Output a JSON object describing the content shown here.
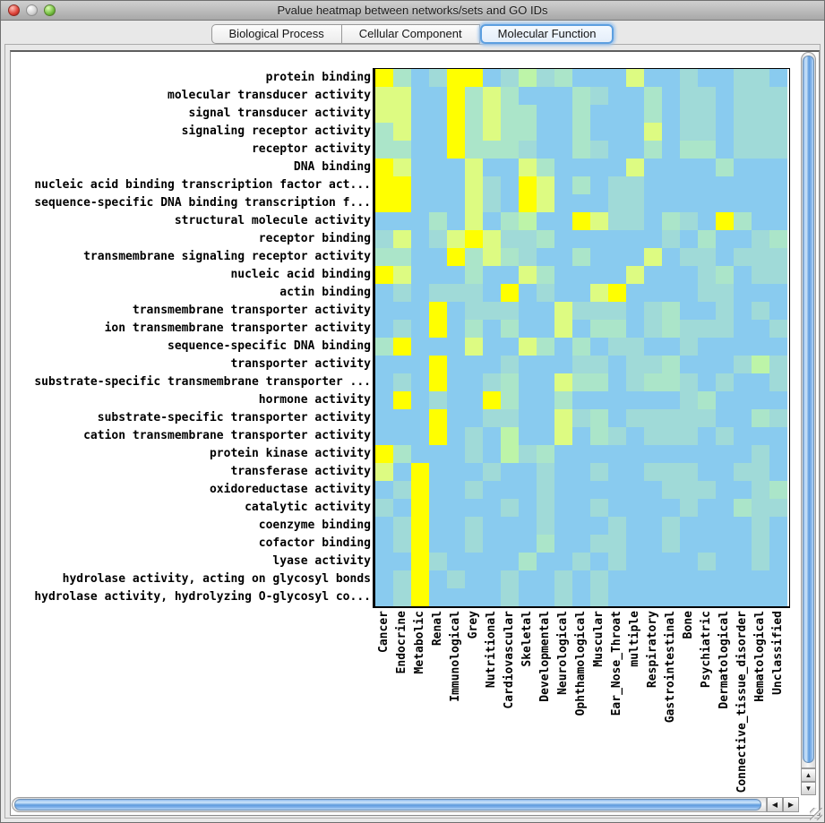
{
  "window": {
    "title": "Pvalue heatmap between networks/sets and GO IDs"
  },
  "tabs": [
    {
      "label": "Biological Process",
      "selected": false
    },
    {
      "label": "Cellular Component",
      "selected": false
    },
    {
      "label": "Molecular Function",
      "selected": true
    }
  ],
  "icons": {
    "scroll_up": "▲",
    "scroll_down": "▼",
    "scroll_left": "◀",
    "scroll_right": "▶"
  },
  "chart_data": {
    "type": "heatmap",
    "rows": [
      "protein binding",
      "molecular transducer activity",
      "signal transducer activity",
      "signaling receptor activity",
      "receptor activity",
      "DNA binding",
      "nucleic acid binding transcription factor act...",
      "sequence-specific DNA binding transcription f...",
      "structural molecule activity",
      "receptor binding",
      "transmembrane signaling receptor activity",
      "nucleic acid binding",
      "actin binding",
      "transmembrane transporter activity",
      "ion transmembrane transporter activity",
      "sequence-specific DNA binding",
      "transporter activity",
      "substrate-specific transmembrane transporter ...",
      "hormone activity",
      "substrate-specific transporter activity",
      "cation transmembrane transporter activity",
      "protein kinase activity",
      "transferase activity",
      "oxidoreductase activity",
      "catalytic activity",
      "coenzyme binding",
      "cofactor binding",
      "lyase activity",
      "hydrolase activity, acting on glycosyl bonds",
      "hydrolase activity, hydrolyzing O-glycosyl co..."
    ],
    "columns": [
      "Cancer",
      "Endocrine",
      "Metabolic",
      "Renal",
      "Immunological",
      "Grey",
      "Nutritional",
      "Cardiovascular",
      "Skeletal",
      "Developmental",
      "Neurological",
      "Ophthamological",
      "Muscular",
      "Ear_Nose_Throat",
      "multiple",
      "Respiratory",
      "Gastrointestinal",
      "Bone",
      "Psychiatric",
      "Dermatological",
      "Connective_tissue_disorder",
      "Hematological",
      "Unclassified"
    ],
    "palette": {
      "b": "#89CBEF",
      "t": "#A0DAD8",
      "m": "#ABE5C9",
      "g": "#BDF4A8",
      "p": "#DDFB82",
      "y": "#FFFF00"
    },
    "palette_legend": {
      "b": "low significance (light blue)",
      "t": "pale blue-green",
      "m": "mint green",
      "g": "light green",
      "p": "pale yellow-green",
      "y": "high significance (yellow)"
    },
    "grid": [
      "ymbtyybtgtmbbbpbbtbbttb",
      "ppbbympmbbbmtbbmbttbttt",
      "ppbbympmmbbmbbbmbttbttt",
      "mpbbympmmbbmbbbpbttbttt",
      "mmbbymmmtbbmtbbmbmmbttt",
      "ypbbbpbbpmbbbbpbbbbmbbb",
      "yybbbptbypbmbttbbbbbbbb",
      "yybbbptbypbbbttbbbbbbbb",
      "bbbmbpbmgbbypttbmtbymbb",
      "tpbtpypttmbbbbbbtbmbbtm",
      "mmbbympmtbbmbbbpbttbttt",
      "ypbbbmbbpmbbbbpbbbtmbtt",
      "btbtttbybtbbpybbbbttbbb",
      "bbbybtttbbptttbtmbbtbtb",
      "btbybmbmbbpbmmbtmtttbbt",
      "mybbbpbbpmbmbttbbtbbbbb",
      "bbbybbbtbbbttbttmbbbtgt",
      "btbybbtmbbpmmbtmmtbtbbt",
      "bybtbbymbbmbbbbbbtmbbbb",
      "bbbybbttbbptmbtttttbbmt",
      "bbbybtbgbbpbmtbtttbtbbb",
      "ymbbbtbgtmbbbbbbbbbbbtb",
      "pbybbbtbbtbbtbbtttbbttb",
      "btybbtbbbtbbbbbbtttbbtm",
      "tbybbbbtbtbbtbbbbtbbmtt",
      "btybbtbbbtbbbtbbtbbbbtb",
      "btybbtbbbmbbttbbtbbbbtb",
      "bbytbbbbmbbtbtbbbbtbbtb",
      "btybtbbtbbtbtbbbbbbbbbb",
      "btybbbbtbbtbtbbbbbbbbbb"
    ],
    "layout": {
      "grid_lines": false,
      "x_labels_rotation_deg": 90,
      "cell_rows": 30,
      "cell_cols": 23
    }
  }
}
